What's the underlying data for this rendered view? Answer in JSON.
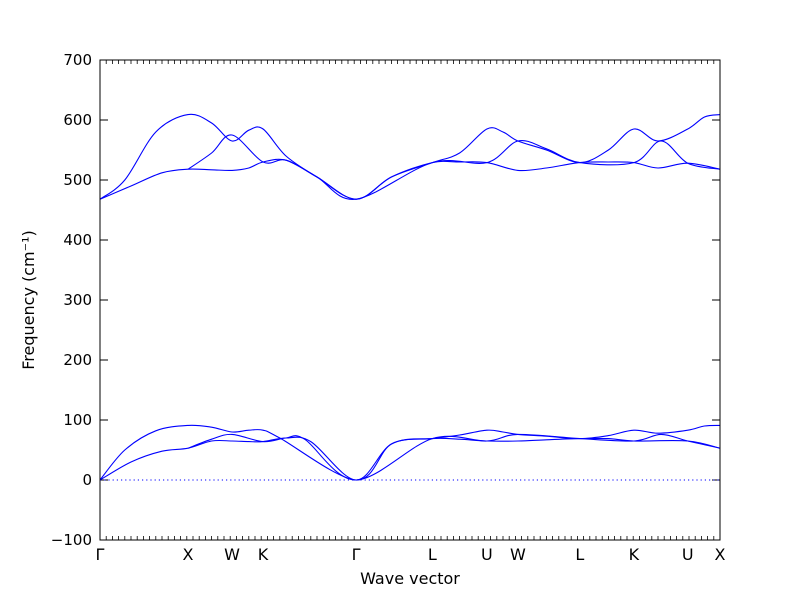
{
  "chart_data": {
    "type": "line",
    "title": "",
    "xlabel": "Wave vector",
    "ylabel": "Frequency (cm⁻¹)",
    "ylim": [
      -100,
      700
    ],
    "yticks": [
      -100,
      0,
      100,
      200,
      300,
      400,
      500,
      600,
      700
    ],
    "xlim": [
      0,
      1
    ],
    "special_points": [
      {
        "label": "Γ",
        "x": 0.0
      },
      {
        "label": "X",
        "x": 0.142
      },
      {
        "label": "W",
        "x": 0.213
      },
      {
        "label": "K",
        "x": 0.263
      },
      {
        "label": "Γ",
        "x": 0.413
      },
      {
        "label": "L",
        "x": 0.536
      },
      {
        "label": "U",
        "x": 0.624
      },
      {
        "label": "W",
        "x": 0.674
      },
      {
        "label": "L",
        "x": 0.774
      },
      {
        "label": "K",
        "x": 0.861
      },
      {
        "label": "U",
        "x": 0.948
      },
      {
        "label": "X",
        "x": 1.0
      }
    ],
    "zero_line": {
      "y": 0,
      "style": "dotted"
    },
    "line_color": "#0000ff",
    "series": [
      {
        "branch": "acoustic-upper",
        "points": [
          [
            0.0,
            0
          ],
          [
            0.04,
            50
          ],
          [
            0.09,
            82
          ],
          [
            0.142,
            91
          ],
          [
            0.18,
            88
          ],
          [
            0.213,
            80
          ],
          [
            0.24,
            83
          ],
          [
            0.263,
            83
          ],
          [
            0.29,
            70
          ],
          [
            0.413,
            0
          ],
          [
            0.47,
            60
          ],
          [
            0.536,
            69
          ],
          [
            0.58,
            75
          ],
          [
            0.624,
            83
          ],
          [
            0.65,
            80
          ],
          [
            0.674,
            76
          ],
          [
            0.72,
            73
          ],
          [
            0.774,
            69
          ],
          [
            0.82,
            74
          ],
          [
            0.861,
            83
          ],
          [
            0.9,
            78
          ],
          [
            0.948,
            83
          ],
          [
            0.975,
            90
          ],
          [
            1.0,
            91
          ]
        ]
      },
      {
        "branch": "acoustic-lower",
        "points": [
          [
            0.0,
            0
          ],
          [
            0.05,
            30
          ],
          [
            0.1,
            48
          ],
          [
            0.142,
            53
          ],
          [
            0.18,
            65
          ],
          [
            0.213,
            65
          ],
          [
            0.24,
            64
          ],
          [
            0.263,
            64
          ],
          [
            0.3,
            70
          ],
          [
            0.34,
            64
          ],
          [
            0.413,
            0
          ],
          [
            0.47,
            60
          ],
          [
            0.536,
            69
          ],
          [
            0.58,
            68
          ],
          [
            0.624,
            65
          ],
          [
            0.674,
            65
          ],
          [
            0.72,
            67
          ],
          [
            0.774,
            69
          ],
          [
            0.82,
            69
          ],
          [
            0.861,
            65
          ],
          [
            0.948,
            65
          ],
          [
            1.0,
            53
          ]
        ]
      },
      {
        "branch": "acoustic-mid",
        "points": [
          [
            0.142,
            53
          ],
          [
            0.18,
            68
          ],
          [
            0.213,
            76
          ],
          [
            0.263,
            64
          ],
          [
            0.3,
            70
          ],
          [
            0.33,
            68
          ],
          [
            0.413,
            0
          ],
          [
            0.536,
            69
          ],
          [
            0.624,
            65
          ],
          [
            0.674,
            76
          ],
          [
            0.774,
            69
          ],
          [
            0.861,
            65
          ],
          [
            0.905,
            76
          ],
          [
            0.948,
            65
          ],
          [
            1.0,
            53
          ]
        ]
      },
      {
        "branch": "optical-upper",
        "points": [
          [
            0.0,
            468
          ],
          [
            0.04,
            500
          ],
          [
            0.09,
            580
          ],
          [
            0.142,
            609
          ],
          [
            0.18,
            595
          ],
          [
            0.213,
            565
          ],
          [
            0.24,
            583
          ],
          [
            0.263,
            585
          ],
          [
            0.3,
            540
          ],
          [
            0.35,
            505
          ],
          [
            0.413,
            468
          ],
          [
            0.47,
            505
          ],
          [
            0.536,
            529
          ],
          [
            0.58,
            545
          ],
          [
            0.624,
            585
          ],
          [
            0.65,
            580
          ],
          [
            0.674,
            565
          ],
          [
            0.72,
            550
          ],
          [
            0.774,
            529
          ],
          [
            0.82,
            550
          ],
          [
            0.861,
            585
          ],
          [
            0.9,
            565
          ],
          [
            0.948,
            585
          ],
          [
            0.975,
            605
          ],
          [
            1.0,
            609
          ]
        ]
      },
      {
        "branch": "optical-lower",
        "points": [
          [
            0.0,
            468
          ],
          [
            0.05,
            490
          ],
          [
            0.1,
            512
          ],
          [
            0.142,
            518
          ],
          [
            0.18,
            517
          ],
          [
            0.213,
            516
          ],
          [
            0.24,
            520
          ],
          [
            0.263,
            530
          ],
          [
            0.3,
            533
          ],
          [
            0.35,
            505
          ],
          [
            0.413,
            468
          ],
          [
            0.47,
            505
          ],
          [
            0.536,
            529
          ],
          [
            0.58,
            530
          ],
          [
            0.624,
            529
          ],
          [
            0.674,
            516
          ],
          [
            0.72,
            520
          ],
          [
            0.774,
            529
          ],
          [
            0.82,
            530
          ],
          [
            0.861,
            529
          ],
          [
            0.9,
            520
          ],
          [
            0.948,
            528
          ],
          [
            1.0,
            518
          ]
        ]
      },
      {
        "branch": "optical-mid",
        "points": [
          [
            0.142,
            518
          ],
          [
            0.18,
            545
          ],
          [
            0.213,
            575
          ],
          [
            0.263,
            530
          ],
          [
            0.3,
            533
          ],
          [
            0.35,
            505
          ],
          [
            0.413,
            468
          ],
          [
            0.536,
            529
          ],
          [
            0.624,
            529
          ],
          [
            0.674,
            565
          ],
          [
            0.72,
            552
          ],
          [
            0.774,
            529
          ],
          [
            0.861,
            529
          ],
          [
            0.905,
            565
          ],
          [
            0.948,
            528
          ],
          [
            1.0,
            518
          ]
        ]
      }
    ]
  }
}
